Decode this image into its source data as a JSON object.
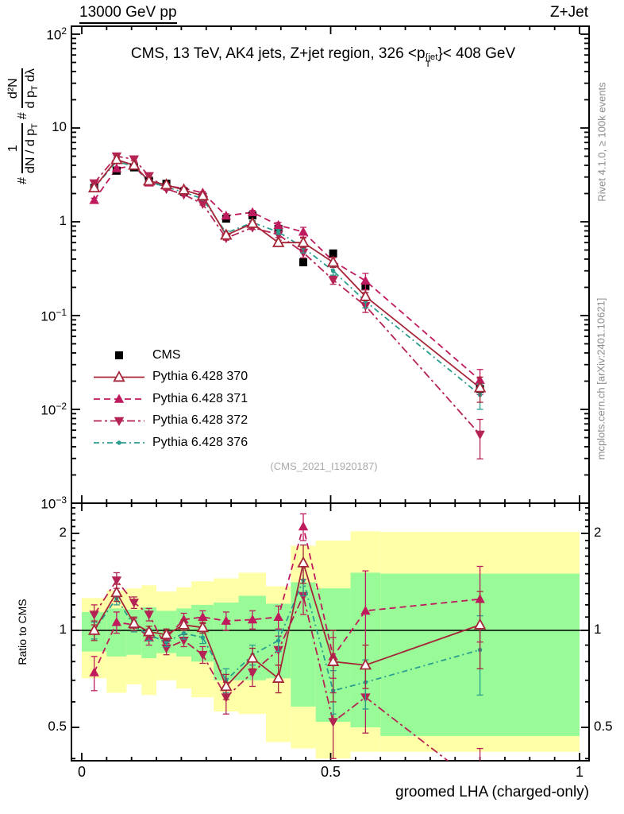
{
  "header": {
    "left": "13000 GeV pp",
    "right": "Z+Jet"
  },
  "title": {
    "pre": "CMS, 13 TeV, AK4 jets, Z+jet region, 326 <p",
    "sup": "{jet",
    "sub": "T",
    "post": "}< 408 GeV"
  },
  "watermark": "(CMS_2021_I1920187)",
  "side_notes": {
    "top": "Rivet 4.1.0, ≥ 100k events",
    "bottom": "mcplots.cern.ch [arXiv:2401.10621]"
  },
  "ylabel_main": {
    "hash1": "#",
    "frac1": {
      "num": "1",
      "den_pre": "dN / d p",
      "den_sub": "T"
    },
    "hash2": "#",
    "frac2": {
      "num": "d²N",
      "den_pre": "d p",
      "den_sub": "T",
      "den_post": " dλ"
    }
  },
  "ylabel_ratio": "Ratio to CMS",
  "xlabel": "groomed LHA (charged-only)",
  "legend": {
    "items": [
      {
        "label": "CMS"
      },
      {
        "label": "Pythia 6.428 370"
      },
      {
        "label": "Pythia 6.428 371"
      },
      {
        "label": "Pythia 6.428 372"
      },
      {
        "label": "Pythia 6.428 376"
      }
    ]
  },
  "chart_data": {
    "type": "line",
    "title": "CMS, 13 TeV, AK4 jets, Z+jet region, 326 < pT{jet} < 408 GeV",
    "xlabel": "groomed LHA (charged-only)",
    "ylabel": "# 1/(dN/dpT) # d2N/(dpT dlambda)",
    "ratio_label": "Ratio to CMS",
    "x": [
      0.025,
      0.07,
      0.105,
      0.135,
      0.17,
      0.205,
      0.243,
      0.29,
      0.343,
      0.395,
      0.445,
      0.505,
      0.57,
      0.8
    ],
    "bin_edges": [
      0,
      0.05,
      0.09,
      0.12,
      0.15,
      0.19,
      0.22,
      0.265,
      0.315,
      0.37,
      0.42,
      0.47,
      0.54,
      0.6,
      1.0
    ],
    "series": [
      {
        "name": "CMS",
        "color": "#000000",
        "marker": "square",
        "line": "none",
        "values": [
          2.3,
          3.5,
          3.8,
          2.75,
          2.55,
          2.1,
          1.85,
          1.08,
          1.17,
          0.84,
          0.37,
          0.46,
          0.205,
          0.0165
        ]
      },
      {
        "name": "Pythia 6.428 371",
        "color": "#c01a5e",
        "marker": "tri-up",
        "line": "dashed",
        "values": [
          1.7,
          3.7,
          3.95,
          2.61,
          2.42,
          2.27,
          2.04,
          1.16,
          1.26,
          0.92,
          0.78,
          0.38,
          0.235,
          0.0205
        ],
        "rel_err": [
          0.05,
          0.04,
          0.03,
          0.03,
          0.03,
          0.03,
          0.03,
          0.05,
          0.05,
          0.07,
          0.12,
          0.1,
          0.2,
          0.3
        ],
        "ratio": [
          0.74,
          1.06,
          1.04,
          0.95,
          0.95,
          1.08,
          1.1,
          1.07,
          1.08,
          1.1,
          2.1,
          0.83,
          1.15,
          1.25
        ],
        "ratio_err": [
          0.09,
          0.08,
          0.05,
          0.05,
          0.04,
          0.05,
          0.05,
          0.07,
          0.07,
          0.09,
          0.2,
          0.12,
          0.38,
          0.33
        ]
      },
      {
        "name": "Pythia 6.428 372",
        "color": "#b52354",
        "marker": "tri-down",
        "line": "dash-dot",
        "values": [
          2.58,
          5.0,
          4.64,
          3.08,
          2.24,
          1.95,
          1.55,
          0.67,
          0.87,
          0.73,
          0.47,
          0.24,
          0.127,
          0.0054
        ],
        "rel_err": [
          0.05,
          0.04,
          0.03,
          0.03,
          0.03,
          0.03,
          0.03,
          0.05,
          0.05,
          0.07,
          0.12,
          0.1,
          0.15,
          0.45
        ],
        "ratio": [
          1.12,
          1.43,
          1.22,
          1.12,
          0.88,
          0.93,
          0.84,
          0.62,
          0.74,
          0.87,
          1.28,
          0.52,
          0.62,
          0.33
        ],
        "ratio_err": [
          0.08,
          0.08,
          0.05,
          0.05,
          0.04,
          0.04,
          0.05,
          0.07,
          0.07,
          0.09,
          0.16,
          0.12,
          0.14,
          0.1
        ]
      },
      {
        "name": "Pythia 6.428 376",
        "color": "#2a9d8f",
        "marker": "dot",
        "line": "dash-dot-dot",
        "values": [
          2.3,
          4.4,
          3.9,
          2.67,
          2.35,
          2.06,
          1.76,
          0.76,
          0.98,
          0.78,
          0.53,
          0.3,
          0.142,
          0.0143
        ],
        "rel_err": [
          0.04,
          0.04,
          0.03,
          0.03,
          0.03,
          0.03,
          0.03,
          0.05,
          0.05,
          0.06,
          0.12,
          0.1,
          0.15,
          0.3
        ],
        "ratio": [
          1.0,
          1.26,
          1.03,
          0.97,
          0.92,
          0.98,
          0.95,
          0.7,
          0.84,
          0.93,
          1.43,
          0.65,
          0.69,
          0.87
        ],
        "ratio_err": [
          0.06,
          0.06,
          0.04,
          0.04,
          0.03,
          0.04,
          0.04,
          0.06,
          0.06,
          0.07,
          0.15,
          0.1,
          0.12,
          0.24
        ]
      },
      {
        "name": "Pythia 6.428 370",
        "color": "#a62639",
        "marker": "tri-open",
        "line": "solid",
        "values": [
          2.3,
          4.6,
          4.0,
          2.72,
          2.48,
          2.18,
          1.89,
          0.72,
          0.96,
          0.6,
          0.6,
          0.37,
          0.16,
          0.017
        ],
        "rel_err": [
          0.04,
          0.04,
          0.03,
          0.03,
          0.03,
          0.03,
          0.03,
          0.05,
          0.05,
          0.06,
          0.12,
          0.12,
          0.1,
          0.3
        ],
        "ratio": [
          1.0,
          1.31,
          1.05,
          0.99,
          0.97,
          1.04,
          1.02,
          0.67,
          0.82,
          0.71,
          1.62,
          0.8,
          0.78,
          1.04
        ],
        "ratio_err": [
          0.07,
          0.08,
          0.05,
          0.04,
          0.04,
          0.04,
          0.04,
          0.06,
          0.06,
          0.07,
          0.22,
          0.2,
          0.12,
          0.28
        ]
      }
    ],
    "ratio_bands": {
      "yellow_color": "#ffffa8",
      "green_color": "#98fb98",
      "green_lo": [
        0.86,
        0.83,
        0.84,
        0.82,
        0.85,
        0.83,
        0.8,
        0.7,
        0.7,
        0.71,
        0.58,
        0.52,
        0.5,
        0.47
      ],
      "green_hi": [
        1.14,
        1.17,
        1.16,
        1.18,
        1.15,
        1.17,
        1.2,
        1.22,
        1.28,
        1.21,
        1.41,
        1.35,
        1.51,
        1.5
      ],
      "yellow_lo": [
        0.71,
        0.64,
        0.68,
        0.63,
        0.7,
        0.66,
        0.62,
        0.56,
        0.55,
        0.45,
        0.43,
        0.4,
        0.42,
        0.42
      ],
      "yellow_hi": [
        1.26,
        1.33,
        1.35,
        1.38,
        1.32,
        1.36,
        1.42,
        1.45,
        1.51,
        1.37,
        1.83,
        1.9,
        2.03,
        2.02
      ]
    },
    "axes": {
      "x": {
        "min": 0,
        "max": 1,
        "minor_step": 0.05,
        "ticks": [
          {
            "v": 0,
            "label": "0"
          },
          {
            "v": 0.5,
            "label": "0.5"
          },
          {
            "v": 1,
            "label": "1"
          }
        ]
      },
      "y_main": {
        "scale": "log",
        "min": 0.001,
        "max": 120,
        "ticks": [
          {
            "v": 100,
            "m": "10",
            "e": "2"
          },
          {
            "v": 10,
            "m": "10",
            "e": ""
          },
          {
            "v": 1,
            "m": "1",
            "e": ""
          },
          {
            "v": 0.1,
            "m": "10",
            "e": "−1"
          },
          {
            "v": 0.01,
            "m": "10",
            "e": "−2"
          },
          {
            "v": 0.001,
            "m": "10",
            "e": "−3"
          }
        ]
      },
      "y_ratio": {
        "scale": "log",
        "min": 0.394,
        "max": 2.48,
        "ticks": [
          {
            "v": 2,
            "label": "2"
          },
          {
            "v": 1,
            "label": "1"
          },
          {
            "v": 0.5,
            "label": "0.5"
          }
        ]
      }
    }
  }
}
